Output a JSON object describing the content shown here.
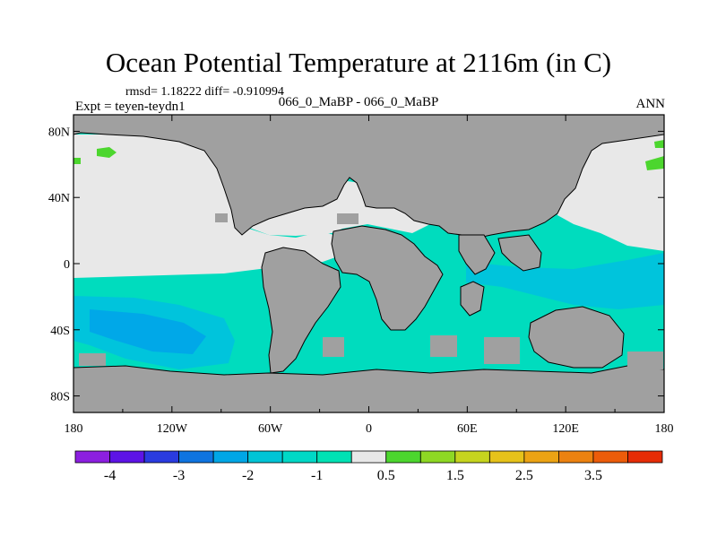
{
  "title": "Ocean Potential Temperature at 2116m (in C)",
  "stats": "rmsd= 1.18222 diff= -0.910994",
  "left_label": "Expt = teyen-teydn1",
  "center_label": "066_0_MaBP - 066_0_MaBP",
  "right_label": "ANN",
  "lat_ticks": [
    {
      "value": 80,
      "label": "80N"
    },
    {
      "value": 40,
      "label": "40N"
    },
    {
      "value": 0,
      "label": "0"
    },
    {
      "value": -40,
      "label": "40S"
    },
    {
      "value": -80,
      "label": "80S"
    }
  ],
  "lon_ticks": [
    {
      "value": -180,
      "label": "180"
    },
    {
      "value": -120,
      "label": "120W"
    },
    {
      "value": -60,
      "label": "60W"
    },
    {
      "value": 0,
      "label": "0"
    },
    {
      "value": 60,
      "label": "60E"
    },
    {
      "value": 120,
      "label": "120E"
    },
    {
      "value": 180,
      "label": "180"
    }
  ],
  "colorbar": {
    "colors": [
      "#8c1fe0",
      "#5d13e6",
      "#2a3be0",
      "#0f74e0",
      "#00a6e6",
      "#00c4d6",
      "#00d8c6",
      "#00e2b4",
      "#e8e8e8",
      "#4cd62e",
      "#8ed824",
      "#c6d41e",
      "#e6c21a",
      "#eca314",
      "#ec8210",
      "#ec5c0a",
      "#e62c06"
    ],
    "labels": [
      {
        "index": 1,
        "text": "-4"
      },
      {
        "index": 3,
        "text": "-3"
      },
      {
        "index": 5,
        "text": "-2"
      },
      {
        "index": 7,
        "text": "-1"
      },
      {
        "index": 9,
        "text": "0.5"
      },
      {
        "index": 11,
        "text": "1.5"
      },
      {
        "index": 13,
        "text": "2.5"
      },
      {
        "index": 15,
        "text": "3.5"
      }
    ]
  },
  "colors": {
    "land": "#a0a0a0",
    "near_zero": "#e8e8e8",
    "teal": "#00dcbe",
    "cyan": "#00c4dc",
    "blue": "#00a8e8",
    "purple": "#7a14e4",
    "green": "#4cd62e"
  }
}
